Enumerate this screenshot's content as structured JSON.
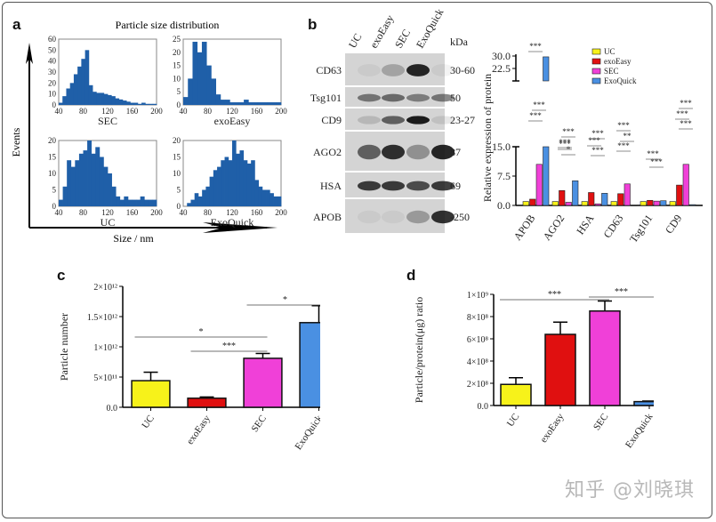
{
  "watermark": "知乎 @刘晓琪",
  "colors": {
    "UC": "#f7f21a",
    "exoEasy": "#e01010",
    "SEC": "#f040d8",
    "ExoQuick": "#4a90e2",
    "hist": "#1f5fa8"
  },
  "panels": {
    "a": "a",
    "b": "b",
    "c": "c",
    "d": "d"
  },
  "chart_data": [
    {
      "id": "a",
      "type": "bar",
      "title": "Particle size distribution",
      "xlabel": "Size / nm",
      "ylabel": "Events",
      "subplots": [
        {
          "name": "SEC",
          "xlim": [
            40,
            200
          ],
          "ylim": [
            0,
            60
          ],
          "xticks": [
            40,
            80,
            120,
            160,
            200
          ],
          "yticks": [
            0,
            10,
            20,
            30,
            40,
            50,
            60
          ],
          "x": [
            45,
            50,
            55,
            60,
            65,
            70,
            75,
            78,
            80,
            85,
            90,
            95,
            100,
            105,
            110,
            115,
            120,
            125,
            130,
            140,
            150,
            160,
            170,
            180,
            190,
            200
          ],
          "values": [
            2,
            8,
            15,
            20,
            28,
            35,
            42,
            50,
            18,
            12,
            11,
            11,
            10,
            9,
            8,
            6,
            5,
            4,
            3,
            2,
            2,
            1,
            2,
            1,
            1,
            1
          ]
        },
        {
          "name": "exoEasy",
          "xlim": [
            40,
            200
          ],
          "ylim": [
            0,
            25
          ],
          "xticks": [
            40,
            80,
            120,
            160,
            200
          ],
          "yticks": [
            0,
            5,
            10,
            15,
            20,
            25
          ],
          "x": [
            45,
            50,
            55,
            60,
            65,
            70,
            75,
            80,
            85,
            90,
            100,
            110,
            120,
            130,
            140,
            150,
            160,
            170,
            180,
            190,
            200
          ],
          "values": [
            3,
            10,
            24,
            20,
            24,
            15,
            10,
            4,
            2,
            2,
            1,
            1,
            1,
            2,
            1,
            1,
            1,
            1,
            1,
            1,
            1
          ]
        },
        {
          "name": "UC",
          "xlim": [
            40,
            200
          ],
          "ylim": [
            0,
            20
          ],
          "xticks": [
            40,
            80,
            120,
            160,
            200
          ],
          "yticks": [
            0,
            5,
            10,
            15,
            20
          ],
          "x": [
            45,
            50,
            55,
            60,
            65,
            70,
            75,
            80,
            85,
            90,
            95,
            100,
            105,
            110,
            115,
            120,
            130,
            140,
            150,
            160,
            170,
            180,
            190,
            200
          ],
          "values": [
            2,
            6,
            14,
            12,
            14,
            16,
            17,
            20,
            16,
            18,
            15,
            12,
            10,
            6,
            3,
            2,
            3,
            2,
            2,
            2,
            3,
            2,
            2,
            2
          ]
        },
        {
          "name": "ExoQuick",
          "xlim": [
            40,
            200
          ],
          "ylim": [
            0,
            20
          ],
          "xticks": [
            40,
            80,
            120,
            160,
            200
          ],
          "yticks": [
            0,
            5,
            10,
            15,
            20
          ],
          "x": [
            45,
            50,
            55,
            60,
            65,
            70,
            75,
            80,
            85,
            90,
            95,
            100,
            105,
            110,
            115,
            120,
            125,
            130,
            135,
            140,
            150,
            160,
            170,
            180,
            190,
            200
          ],
          "values": [
            0,
            1,
            2,
            4,
            3,
            5,
            6,
            9,
            11,
            12,
            14,
            15,
            14,
            20,
            16,
            17,
            14,
            13,
            14,
            8,
            6,
            5,
            5,
            4,
            3,
            3
          ]
        }
      ]
    },
    {
      "id": "b-blot",
      "type": "table",
      "lanes": [
        "UC",
        "exoEasy",
        "SEC",
        "ExoQuick"
      ],
      "unit_label": "kDa",
      "rows": [
        {
          "protein": "CD63",
          "kda": "30-60"
        },
        {
          "protein": "Tsg101",
          "kda": "50"
        },
        {
          "protein": "CD9",
          "kda": "23-27"
        },
        {
          "protein": "AGO2",
          "kda": "87"
        },
        {
          "protein": "HSA",
          "kda": "69"
        },
        {
          "protein": "APOB",
          "kda": "-250"
        }
      ]
    },
    {
      "id": "b",
      "type": "bar",
      "ylabel": "Relative expression of protein",
      "categories": [
        "APOB",
        "AGO2",
        "HSA",
        "CD63",
        "Tsg101",
        "CD9"
      ],
      "ylim_lower": [
        0,
        15
      ],
      "ylim_upper": [
        15,
        30
      ],
      "yticks": [
        "0.0",
        "7.5",
        "15.0",
        "22.5",
        "30.0"
      ],
      "legend": [
        "UC",
        "exoEasy",
        "SEC",
        "ExoQuick"
      ],
      "legend_position": "top-center",
      "series": [
        {
          "name": "UC",
          "values": [
            1.0,
            1.0,
            1.0,
            1.0,
            1.0,
            1.0
          ]
        },
        {
          "name": "exoEasy",
          "values": [
            1.6,
            3.8,
            3.3,
            3.0,
            1.3,
            5.2
          ]
        },
        {
          "name": "SEC",
          "values": [
            10.5,
            0.8,
            0.4,
            5.5,
            1.1,
            10.5
          ]
        },
        {
          "name": "ExoQuick",
          "values": [
            29.5,
            6.3,
            3.1,
            0.0,
            1.2,
            0.2
          ]
        }
      ],
      "annotations": [
        "***",
        "***",
        "***",
        "*",
        "***",
        "***",
        "***",
        "***",
        "***",
        "***",
        "***",
        "**",
        "***",
        "***",
        "***",
        "***"
      ]
    },
    {
      "id": "c",
      "type": "bar",
      "ylabel": "Particle number",
      "categories": [
        "UC",
        "exoEasy",
        "SEC",
        "ExoQuick"
      ],
      "values": [
        440000000000.0,
        150000000000.0,
        810000000000.0,
        1400000000000.0
      ],
      "errors": [
        140000000000.0,
        20000000000.0,
        80000000000.0,
        280000000000.0
      ],
      "ylim": [
        0,
        2000000000000.0
      ],
      "yticks": [
        "0.0",
        "5×10¹¹",
        "1×10¹²",
        "1.5×10¹²",
        "2×10¹²"
      ],
      "significance": [
        {
          "from": "UC",
          "to": "SEC",
          "label": "*"
        },
        {
          "from": "exoEasy",
          "to": "SEC",
          "label": "***"
        },
        {
          "from": "SEC",
          "to": "ExoQuick",
          "label": "*"
        }
      ]
    },
    {
      "id": "d",
      "type": "bar",
      "ylabel": "Particle/protein(μg) ratio",
      "categories": [
        "UC",
        "exoEasy",
        "SEC",
        "ExoQuick"
      ],
      "values": [
        190000000.0,
        640000000.0,
        850000000.0,
        35000000.0
      ],
      "errors": [
        60000000.0,
        110000000.0,
        90000000.0,
        5000000.0
      ],
      "ylim": [
        0,
        1000000000.0
      ],
      "yticks": [
        "0.0",
        "2×10⁸",
        "4×10⁸",
        "6×10⁸",
        "8×10⁸",
        "1×10⁹"
      ],
      "significance": [
        {
          "from": "UC",
          "to": "SEC",
          "label": "***"
        },
        {
          "from": "SEC",
          "to": "ExoQuick",
          "label": "***"
        }
      ]
    }
  ]
}
